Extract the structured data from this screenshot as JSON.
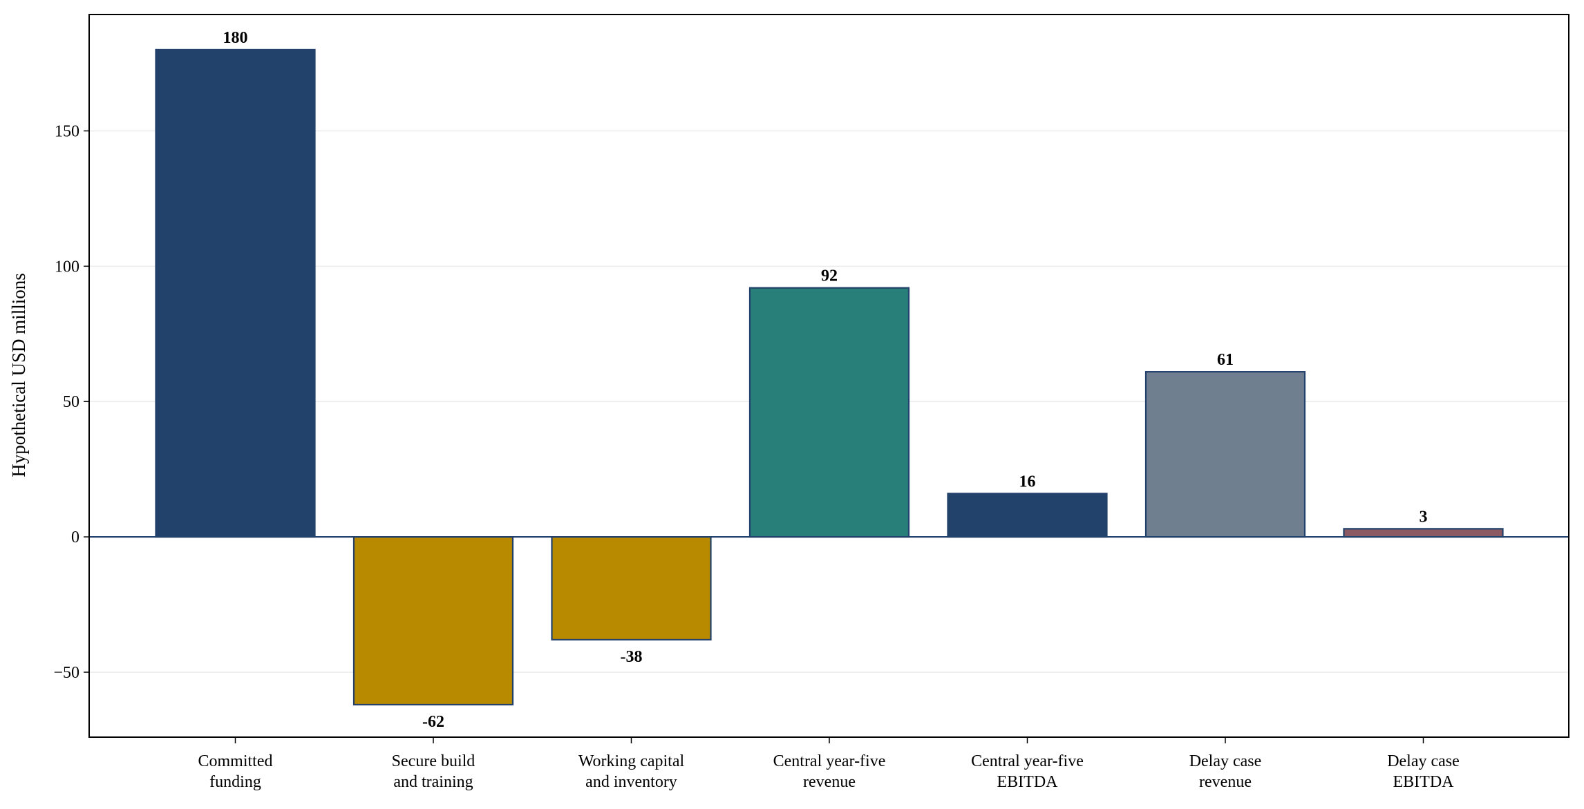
{
  "chart_data": {
    "type": "bar",
    "categories": [
      [
        "Committed",
        "funding"
      ],
      [
        "Secure build",
        "and training"
      ],
      [
        "Working capital",
        "and inventory"
      ],
      [
        "Central year-five",
        "revenue"
      ],
      [
        "Central year-five",
        "EBITDA"
      ],
      [
        "Delay case",
        "revenue"
      ],
      [
        "Delay case",
        "EBITDA"
      ]
    ],
    "values": [
      180,
      -62,
      -38,
      92,
      16,
      61,
      3
    ],
    "data_labels": [
      "180",
      "-62",
      "-38",
      "92",
      "16",
      "61",
      "3"
    ],
    "bar_colors": [
      "#22416b",
      "#b88a00",
      "#b88a00",
      "#287f7a",
      "#22416b",
      "#6f7f90",
      "#8c5a63"
    ],
    "edge_color": "#22416b",
    "zero_line_color": "#22416b",
    "grid_color": "#ebebeb",
    "title": "",
    "xlabel": "",
    "ylabel": "Hypothetical USD millions",
    "ylim": [
      -74,
      193
    ],
    "yticks": [
      -50,
      0,
      50,
      100,
      150
    ],
    "ytick_labels": [
      "−50",
      "0",
      "50",
      "100",
      "150"
    ],
    "grid": "horizontal"
  }
}
